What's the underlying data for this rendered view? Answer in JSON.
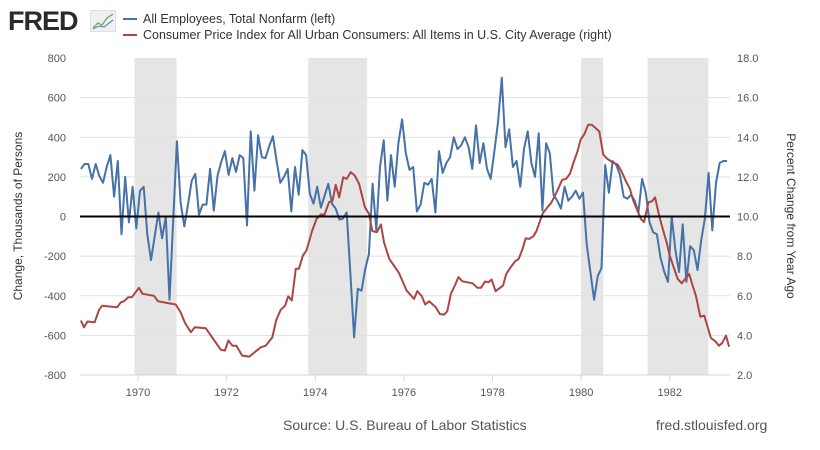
{
  "header": {
    "logo": "FRED",
    "legend": [
      {
        "label": "All Employees, Total Nonfarm (left)",
        "color": "#4572a7"
      },
      {
        "label": "Consumer Price Index for All Urban Consumers: All Items in U.S. City Average (right)",
        "color": "#aa4643"
      }
    ]
  },
  "footer": {
    "source": "Source: U.S. Bureau of Labor Statistics",
    "url": "fred.stlouisfed.org"
  },
  "chart_data": {
    "type": "line",
    "title": "",
    "xlabel": "",
    "ylabel": "Change, Thousands of Persons",
    "ylabel_right": "Percent Change from Year Ago",
    "xlim": [
      1968.69,
      1983.36
    ],
    "ylim": [
      -800,
      800
    ],
    "ylim_right": [
      2,
      18
    ],
    "x_ticks": [
      "1970",
      "1972",
      "1974",
      "1976",
      "1978",
      "1980",
      "1982"
    ],
    "y_ticks": [
      "800",
      "600",
      "400",
      "200",
      "0",
      "-200",
      "-400",
      "-600",
      "-800"
    ],
    "y_ticks_right": [
      "18.0",
      "16.0",
      "14.0",
      "12.0",
      "10.0",
      "8.0",
      "6.0",
      "4.0",
      "2.0"
    ],
    "grid": true,
    "recessions": [
      [
        1969.92,
        1970.87
      ],
      [
        1973.84,
        1975.17
      ],
      [
        1980.0,
        1980.5
      ],
      [
        1981.5,
        1982.87
      ]
    ],
    "series": [
      {
        "name": "All Employees, Total Nonfarm (left)",
        "axis": "left",
        "color": "#4572a7",
        "start": 1968.71,
        "frequency": "monthly",
        "values": [
          240,
          265,
          265,
          190,
          265,
          205,
          170,
          250,
          310,
          100,
          280,
          -90,
          200,
          -30,
          150,
          -60,
          130,
          150,
          -90,
          -220,
          -100,
          20,
          -110,
          0,
          -420,
          -20,
          380,
          70,
          -50,
          60,
          180,
          215,
          10,
          60,
          60,
          240,
          30,
          205,
          275,
          330,
          210,
          295,
          225,
          310,
          295,
          -45,
          430,
          130,
          410,
          300,
          295,
          355,
          405,
          280,
          170,
          200,
          240,
          25,
          250,
          110,
          335,
          310,
          115,
          65,
          150,
          45,
          105,
          165,
          65,
          40,
          -15,
          -10,
          20,
          -290,
          -610,
          -365,
          -375,
          -265,
          -190,
          165,
          -70,
          250,
          385,
          80,
          310,
          150,
          370,
          490,
          320,
          235,
          250,
          25,
          60,
          170,
          160,
          190,
          20,
          330,
          220,
          270,
          300,
          400,
          340,
          360,
          400,
          350,
          240,
          460,
          270,
          370,
          240,
          190,
          330,
          480,
          700,
          350,
          440,
          250,
          280,
          150,
          340,
          430,
          270,
          200,
          420,
          30,
          370,
          320,
          110,
          80,
          40,
          150,
          80,
          100,
          130,
          90,
          120,
          -140,
          -280,
          -420,
          -300,
          -260,
          260,
          120,
          280,
          260,
          210,
          100,
          90,
          110,
          80,
          20,
          190,
          120,
          -30,
          -80,
          -90,
          -210,
          -280,
          -330,
          0,
          -170,
          -280,
          -40,
          -330,
          -150,
          -170,
          -270,
          -120,
          -10,
          220,
          -70,
          170,
          270,
          280,
          280
        ]
      },
      {
        "name": "Consumer Price Index for All Urban Consumers: All Items in U.S. City Average (right)",
        "axis": "right",
        "color": "#aa4643",
        "points": [
          [
            1968.71,
            4.75
          ],
          [
            1968.78,
            4.4
          ],
          [
            1968.86,
            4.7
          ],
          [
            1969.02,
            4.66
          ],
          [
            1969.12,
            5.29
          ],
          [
            1969.19,
            5.5
          ],
          [
            1969.53,
            5.42
          ],
          [
            1969.61,
            5.67
          ],
          [
            1969.68,
            5.72
          ],
          [
            1969.78,
            5.92
          ],
          [
            1969.86,
            5.92
          ],
          [
            1970.02,
            6.4
          ],
          [
            1970.1,
            6.1
          ],
          [
            1970.36,
            6.0
          ],
          [
            1970.45,
            5.72
          ],
          [
            1970.85,
            5.56
          ],
          [
            1970.96,
            5.17
          ],
          [
            1971.06,
            4.63
          ],
          [
            1971.19,
            4.16
          ],
          [
            1971.28,
            4.41
          ],
          [
            1971.53,
            4.36
          ],
          [
            1971.72,
            3.74
          ],
          [
            1971.87,
            3.27
          ],
          [
            1971.96,
            3.23
          ],
          [
            1972.04,
            3.74
          ],
          [
            1972.13,
            3.48
          ],
          [
            1972.22,
            3.48
          ],
          [
            1972.35,
            2.98
          ],
          [
            1972.51,
            2.93
          ],
          [
            1972.66,
            3.2
          ],
          [
            1972.77,
            3.4
          ],
          [
            1972.88,
            3.48
          ],
          [
            1973.03,
            3.9
          ],
          [
            1973.12,
            4.78
          ],
          [
            1973.22,
            5.29
          ],
          [
            1973.32,
            5.5
          ],
          [
            1973.39,
            5.97
          ],
          [
            1973.47,
            5.76
          ],
          [
            1973.56,
            7.36
          ],
          [
            1973.63,
            7.36
          ],
          [
            1973.72,
            8.03
          ],
          [
            1973.8,
            8.28
          ],
          [
            1973.93,
            9.29
          ],
          [
            1974.03,
            9.88
          ],
          [
            1974.12,
            10.1
          ],
          [
            1974.21,
            10.1
          ],
          [
            1974.31,
            10.72
          ],
          [
            1974.39,
            10.8
          ],
          [
            1974.46,
            11.6
          ],
          [
            1974.54,
            10.97
          ],
          [
            1974.63,
            11.98
          ],
          [
            1974.71,
            11.9
          ],
          [
            1974.8,
            12.24
          ],
          [
            1974.89,
            12.07
          ],
          [
            1974.99,
            11.65
          ],
          [
            1975.12,
            10.47
          ],
          [
            1975.21,
            10.14
          ],
          [
            1975.29,
            9.26
          ],
          [
            1975.39,
            9.21
          ],
          [
            1975.48,
            9.6
          ],
          [
            1975.55,
            8.7
          ],
          [
            1975.67,
            7.86
          ],
          [
            1975.89,
            7.15
          ],
          [
            1976.06,
            6.26
          ],
          [
            1976.23,
            5.84
          ],
          [
            1976.3,
            6.23
          ],
          [
            1976.4,
            6.0
          ],
          [
            1976.48,
            5.56
          ],
          [
            1976.57,
            5.72
          ],
          [
            1976.72,
            5.42
          ],
          [
            1976.81,
            5.08
          ],
          [
            1976.91,
            5.05
          ],
          [
            1976.98,
            5.22
          ],
          [
            1977.06,
            6.1
          ],
          [
            1977.16,
            6.57
          ],
          [
            1977.23,
            6.94
          ],
          [
            1977.32,
            6.73
          ],
          [
            1977.55,
            6.63
          ],
          [
            1977.66,
            6.4
          ],
          [
            1977.74,
            6.4
          ],
          [
            1977.83,
            6.72
          ],
          [
            1977.91,
            6.68
          ],
          [
            1977.98,
            6.82
          ],
          [
            1978.07,
            6.23
          ],
          [
            1978.24,
            6.52
          ],
          [
            1978.31,
            7.1
          ],
          [
            1978.41,
            7.44
          ],
          [
            1978.51,
            7.74
          ],
          [
            1978.59,
            7.86
          ],
          [
            1978.68,
            8.37
          ],
          [
            1978.75,
            8.9
          ],
          [
            1978.83,
            8.87
          ],
          [
            1978.92,
            9.0
          ],
          [
            1978.99,
            9.26
          ],
          [
            1979.05,
            9.63
          ],
          [
            1979.13,
            10.14
          ],
          [
            1979.24,
            10.47
          ],
          [
            1979.32,
            10.67
          ],
          [
            1979.41,
            11.06
          ],
          [
            1979.49,
            11.43
          ],
          [
            1979.57,
            11.85
          ],
          [
            1979.66,
            11.9
          ],
          [
            1979.75,
            12.16
          ],
          [
            1979.82,
            12.66
          ],
          [
            1979.92,
            13.3
          ],
          [
            1979.99,
            13.89
          ],
          [
            1980.07,
            14.14
          ],
          [
            1980.16,
            14.63
          ],
          [
            1980.24,
            14.63
          ],
          [
            1980.33,
            14.46
          ],
          [
            1980.41,
            14.29
          ],
          [
            1980.5,
            13.12
          ],
          [
            1980.59,
            12.91
          ],
          [
            1980.67,
            12.79
          ],
          [
            1980.75,
            12.69
          ],
          [
            1980.82,
            12.63
          ],
          [
            1980.92,
            12.24
          ],
          [
            1981.01,
            11.78
          ],
          [
            1981.1,
            11.4
          ],
          [
            1981.17,
            10.84
          ],
          [
            1981.27,
            10.3
          ],
          [
            1981.35,
            9.88
          ],
          [
            1981.42,
            9.71
          ],
          [
            1981.52,
            10.72
          ],
          [
            1981.6,
            10.76
          ],
          [
            1981.67,
            10.97
          ],
          [
            1981.76,
            10.05
          ],
          [
            1981.84,
            9.38
          ],
          [
            1981.93,
            8.7
          ],
          [
            1982.0,
            8.03
          ],
          [
            1982.1,
            7.36
          ],
          [
            1982.18,
            6.85
          ],
          [
            1982.27,
            6.63
          ],
          [
            1982.35,
            6.85
          ],
          [
            1982.44,
            7.1
          ],
          [
            1982.51,
            6.57
          ],
          [
            1982.59,
            6.0
          ],
          [
            1982.69,
            4.95
          ],
          [
            1982.78,
            5.0
          ],
          [
            1982.93,
            3.87
          ],
          [
            1983.03,
            3.7
          ],
          [
            1983.11,
            3.48
          ],
          [
            1983.18,
            3.6
          ],
          [
            1983.27,
            3.99
          ],
          [
            1983.34,
            3.43
          ]
        ]
      }
    ]
  }
}
